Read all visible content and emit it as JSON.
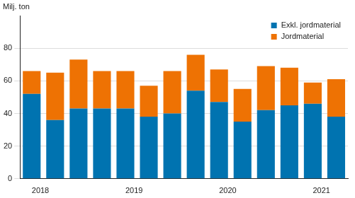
{
  "chart_data": {
    "type": "bar",
    "y_label": "Milj. ton",
    "stacked": true,
    "grid": true,
    "legend": "top-right",
    "categories": [
      "2018",
      null,
      null,
      null,
      "2019",
      null,
      null,
      null,
      "2020",
      null,
      null,
      null,
      "2021",
      null
    ],
    "series": [
      {
        "name": "Exkl. jordmaterial",
        "color": "#0073b0",
        "values": [
          52,
          36,
          43,
          43,
          43,
          38,
          40,
          54,
          47,
          35,
          42,
          45,
          46,
          38
        ]
      },
      {
        "name": "Jordmaterial",
        "color": "#ee7203",
        "values": [
          14,
          29,
          30,
          23,
          23,
          19,
          26,
          22,
          20,
          20,
          27,
          23,
          13,
          23
        ]
      }
    ],
    "ylim": [
      0,
      100
    ],
    "yticks": [
      0,
      20,
      40,
      60,
      80
    ]
  }
}
